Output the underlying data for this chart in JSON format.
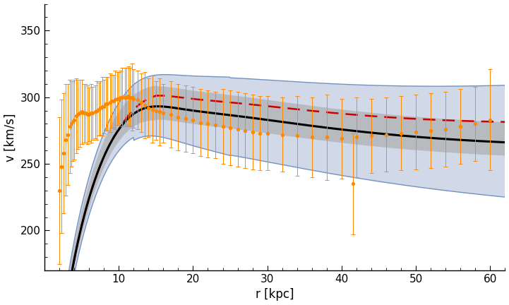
{
  "title": "",
  "xlabel": "r [kpc]",
  "ylabel": "v [km/s]",
  "xlim": [
    0,
    62
  ],
  "ylim": [
    170,
    370
  ],
  "yticks": [
    200,
    250,
    300,
    350
  ],
  "xticks": [
    10,
    20,
    30,
    40,
    50,
    60
  ],
  "bg_color": "#ffffff",
  "black_line_color": "#000000",
  "red_dashed_color": "#cc0000",
  "band1_fill_color": "#aaaaaa",
  "band2_fill_color": "#99aacc",
  "band2_edge_color": "#6688bb",
  "data_color": "#ff8800",
  "data_points": [
    [
      2.0,
      230,
      55
    ],
    [
      2.3,
      248,
      50
    ],
    [
      2.6,
      258,
      45
    ],
    [
      2.9,
      268,
      42
    ],
    [
      3.1,
      272,
      38
    ],
    [
      3.4,
      278,
      35
    ],
    [
      3.6,
      280,
      32
    ],
    [
      3.8,
      282,
      30
    ],
    [
      4.0,
      283,
      30
    ],
    [
      4.3,
      286,
      28
    ],
    [
      4.5,
      287,
      26
    ],
    [
      4.8,
      288,
      25
    ],
    [
      5.0,
      289,
      24
    ],
    [
      5.3,
      288,
      22
    ],
    [
      5.5,
      288,
      22
    ],
    [
      5.8,
      287,
      22
    ],
    [
      6.0,
      287,
      20
    ],
    [
      6.3,
      288,
      22
    ],
    [
      6.5,
      288,
      20
    ],
    [
      6.8,
      289,
      20
    ],
    [
      7.0,
      290,
      22
    ],
    [
      7.3,
      291,
      20
    ],
    [
      7.5,
      292,
      20
    ],
    [
      7.8,
      293,
      22
    ],
    [
      8.0,
      293,
      20
    ],
    [
      8.3,
      295,
      20
    ],
    [
      8.5,
      295,
      20
    ],
    [
      8.8,
      296,
      22
    ],
    [
      9.0,
      297,
      20
    ],
    [
      9.3,
      297,
      20
    ],
    [
      9.5,
      298,
      22
    ],
    [
      9.8,
      299,
      20
    ],
    [
      10.0,
      299,
      20
    ],
    [
      10.3,
      300,
      20
    ],
    [
      10.5,
      300,
      22
    ],
    [
      10.8,
      300,
      22
    ],
    [
      11.0,
      300,
      22
    ],
    [
      11.3,
      301,
      22
    ],
    [
      11.5,
      300,
      22
    ],
    [
      11.8,
      300,
      25
    ],
    [
      12.0,
      299,
      22
    ],
    [
      12.5,
      298,
      22
    ],
    [
      13.0,
      296,
      22
    ],
    [
      13.5,
      294,
      25
    ],
    [
      14.0,
      292,
      22
    ],
    [
      14.5,
      291,
      25
    ],
    [
      15.0,
      290,
      22
    ],
    [
      15.5,
      289,
      25
    ],
    [
      16.0,
      288,
      22
    ],
    [
      17.0,
      287,
      25
    ],
    [
      18.0,
      285,
      25
    ],
    [
      19.0,
      284,
      25
    ],
    [
      20.0,
      283,
      25
    ],
    [
      21.0,
      281,
      25
    ],
    [
      22.0,
      280,
      25
    ],
    [
      23.0,
      279,
      25
    ],
    [
      24.0,
      278,
      28
    ],
    [
      25.0,
      277,
      28
    ],
    [
      26.0,
      276,
      28
    ],
    [
      27.0,
      275,
      28
    ],
    [
      28.0,
      274,
      28
    ],
    [
      29.0,
      273,
      28
    ],
    [
      30.0,
      273,
      28
    ],
    [
      32.0,
      272,
      28
    ],
    [
      34.0,
      271,
      30
    ],
    [
      36.0,
      270,
      30
    ],
    [
      38.0,
      270,
      32
    ],
    [
      40.0,
      269,
      30
    ],
    [
      41.5,
      235,
      38
    ],
    [
      42.0,
      270,
      30
    ],
    [
      44.0,
      271,
      28
    ],
    [
      46.0,
      272,
      28
    ],
    [
      48.0,
      273,
      28
    ],
    [
      50.0,
      274,
      28
    ],
    [
      52.0,
      275,
      28
    ],
    [
      54.0,
      276,
      28
    ],
    [
      56.0,
      278,
      28
    ],
    [
      58.0,
      280,
      28
    ],
    [
      60.0,
      283,
      38
    ]
  ]
}
